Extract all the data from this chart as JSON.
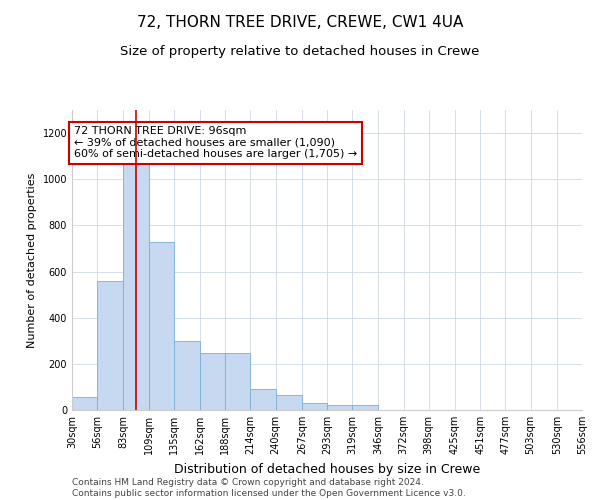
{
  "title": "72, THORN TREE DRIVE, CREWE, CW1 4UA",
  "subtitle": "Size of property relative to detached houses in Crewe",
  "xlabel": "Distribution of detached houses by size in Crewe",
  "ylabel": "Number of detached properties",
  "bar_color": "#c6d9f0",
  "bar_edge_color": "#7bafd4",
  "bin_edges": [
    30,
    56,
    83,
    109,
    135,
    162,
    188,
    214,
    240,
    267,
    293,
    319,
    346,
    372,
    398,
    425,
    451,
    477,
    503,
    530,
    556
  ],
  "bar_heights": [
    55,
    560,
    1090,
    730,
    300,
    245,
    245,
    90,
    65,
    30,
    20,
    20,
    0,
    0,
    0,
    0,
    0,
    0,
    0,
    0
  ],
  "property_size": 96,
  "red_line_color": "#cc0000",
  "annotation_text": "72 THORN TREE DRIVE: 96sqm\n← 39% of detached houses are smaller (1,090)\n60% of semi-detached houses are larger (1,705) →",
  "annotation_box_color": "#cc0000",
  "ylim": [
    0,
    1300
  ],
  "yticks": [
    0,
    200,
    400,
    600,
    800,
    1000,
    1200
  ],
  "grid_color": "#d0d8e8",
  "footer_line1": "Contains HM Land Registry data © Crown copyright and database right 2024.",
  "footer_line2": "Contains public sector information licensed under the Open Government Licence v3.0.",
  "title_fontsize": 11,
  "subtitle_fontsize": 9.5,
  "xlabel_fontsize": 9,
  "ylabel_fontsize": 8,
  "tick_fontsize": 7,
  "annotation_fontsize": 8,
  "footer_fontsize": 6.5
}
